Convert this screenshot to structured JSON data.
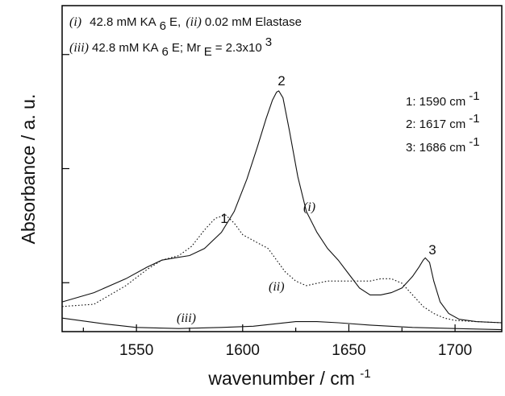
{
  "chart_data": {
    "type": "line",
    "xlabel": "wavenumber / cm",
    "xlabel_sup": "-1",
    "ylabel": "Absorbance / a. u.",
    "xlim": [
      1515,
      1722
    ],
    "ylim": [
      0,
      1
    ],
    "x_ticks": [
      1550,
      1600,
      1650,
      1700
    ],
    "x_tick_labels": [
      "1550",
      "1600",
      "1650",
      "1700"
    ],
    "y_tick_labels_shown": false,
    "grid": false,
    "header": {
      "line1": {
        "tag_i": "(i)",
        "text1": "42.8 mM KA",
        "sub1": "6",
        "text1b": "E, ",
        "tag_ii": "(ii)",
        "text2": " 0.02 mM Elastase"
      },
      "line2": {
        "tag_iii": "(iii)",
        "text1": " 42.8 mM KA",
        "sub1": "6",
        "text1b": "E; Mr",
        "sub2": "E",
        "text2": " = 2.3x10",
        "sup": "3"
      }
    },
    "peak_list": [
      {
        "num": "1",
        "text": "1: 1590 cm",
        "sup": "-1"
      },
      {
        "num": "2",
        "text": "2: 1617 cm",
        "sup": "-1"
      },
      {
        "num": "3",
        "text": "3: 1686 cm",
        "sup": "-1"
      }
    ],
    "peak_markers": [
      {
        "label": "1",
        "x": 1590
      },
      {
        "label": "2",
        "x": 1617
      },
      {
        "label": "3",
        "x": 1686
      }
    ],
    "curve_labels": [
      {
        "label": "(i)",
        "x": 1637
      },
      {
        "label": "(ii)",
        "x": 1629
      },
      {
        "label": "(iii)",
        "x": 1584
      }
    ],
    "series": [
      {
        "style": "solid",
        "x": [
          1515,
          1530,
          1545,
          1555,
          1562,
          1568,
          1575,
          1582,
          1590,
          1596,
          1602,
          1607,
          1611,
          1614,
          1616,
          1617,
          1619,
          1622,
          1626,
          1630,
          1635,
          1640,
          1645,
          1650,
          1655,
          1660,
          1665,
          1670,
          1675,
          1680,
          1683,
          1685,
          1686,
          1688,
          1690,
          1693,
          1697,
          1702,
          1710,
          1722
        ],
        "y": [
          0.09,
          0.13,
          0.19,
          0.24,
          0.27,
          0.28,
          0.29,
          0.32,
          0.39,
          0.48,
          0.62,
          0.76,
          0.88,
          0.96,
          0.995,
          1.0,
          0.97,
          0.83,
          0.63,
          0.48,
          0.39,
          0.32,
          0.27,
          0.21,
          0.15,
          0.12,
          0.12,
          0.13,
          0.15,
          0.2,
          0.24,
          0.27,
          0.28,
          0.26,
          0.18,
          0.09,
          0.04,
          0.015,
          0.005,
          0.0
        ]
      },
      {
        "style": "dotted",
        "x": [
          1515,
          1530,
          1545,
          1555,
          1562,
          1570,
          1576,
          1582,
          1587,
          1592,
          1596,
          1600,
          1604,
          1608,
          1612,
          1616,
          1620,
          1625,
          1630,
          1635,
          1640,
          1645,
          1650,
          1655,
          1660,
          1665,
          1670,
          1675,
          1680,
          1685,
          1690,
          1695,
          1700,
          1710,
          1722
        ],
        "y": [
          0.07,
          0.08,
          0.16,
          0.23,
          0.27,
          0.29,
          0.33,
          0.4,
          0.45,
          0.465,
          0.43,
          0.38,
          0.36,
          0.34,
          0.32,
          0.27,
          0.22,
          0.18,
          0.16,
          0.17,
          0.18,
          0.18,
          0.18,
          0.18,
          0.18,
          0.19,
          0.19,
          0.17,
          0.12,
          0.07,
          0.04,
          0.02,
          0.01,
          0.005,
          0.0
        ]
      },
      {
        "style": "solid",
        "x": [
          1515,
          1535,
          1550,
          1570,
          1590,
          1605,
          1615,
          1625,
          1635,
          1645,
          1660,
          1680,
          1700,
          1722
        ],
        "y": [
          0.02,
          -0.005,
          -0.02,
          -0.025,
          -0.02,
          -0.015,
          -0.005,
          0.005,
          0.005,
          0.0,
          -0.01,
          -0.02,
          -0.025,
          -0.03
        ]
      }
    ]
  }
}
